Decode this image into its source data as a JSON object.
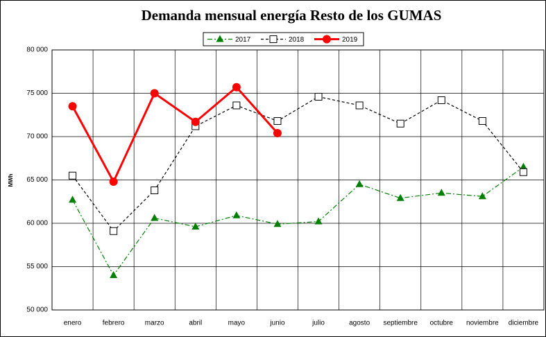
{
  "chart_data": {
    "type": "line",
    "title": "Demanda mensual energía Resto de los GUMAS",
    "y_label": "MWh",
    "categories": [
      "enero",
      "febrero",
      "marzo",
      "abril",
      "mayo",
      "junio",
      "julio",
      "agosto",
      "septiembre",
      "octubre",
      "noviembre",
      "diciembre"
    ],
    "series": [
      {
        "name": "2017",
        "color": "#008000",
        "dash": "dashdot",
        "marker": "triangle",
        "values": [
          62700,
          54000,
          60600,
          59600,
          60900,
          59900,
          60200,
          64500,
          62900,
          63500,
          63100,
          66500
        ]
      },
      {
        "name": "2018",
        "color": "#000000",
        "dash": "dashed",
        "marker": "square",
        "values": [
          65500,
          59100,
          63800,
          71200,
          73600,
          71800,
          74600,
          73600,
          71500,
          74200,
          71800,
          65900
        ]
      },
      {
        "name": "2019",
        "color": "#ff0000",
        "dash": "solid",
        "marker": "circle",
        "values": [
          73500,
          64800,
          75000,
          71700,
          75700,
          70400,
          null,
          null,
          null,
          null,
          null,
          null
        ]
      }
    ],
    "ylim": [
      50000,
      80000
    ],
    "yticks": [
      {
        "value": 50000,
        "label": "50 000"
      },
      {
        "value": 55000,
        "label": "55 000"
      },
      {
        "value": 60000,
        "label": "60 000"
      },
      {
        "value": 65000,
        "label": "65 000"
      },
      {
        "value": 70000,
        "label": "70 000"
      },
      {
        "value": 75000,
        "label": "75 000"
      },
      {
        "value": 80000,
        "label": "80 000"
      }
    ],
    "grid": true,
    "legend": "top"
  }
}
